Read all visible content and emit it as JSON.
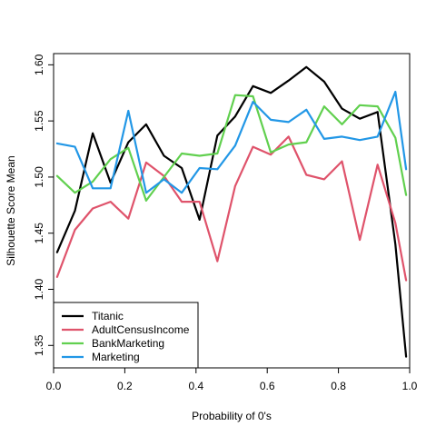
{
  "chart_data": {
    "type": "line",
    "xlabel": "Probability of 0's",
    "ylabel": "Silhouette Score Mean",
    "xlim": [
      0.0,
      1.0
    ],
    "ylim": [
      1.33,
      1.61
    ],
    "xticks": [
      0.0,
      0.2,
      0.4,
      0.6,
      0.8,
      1.0
    ],
    "xtick_labels": [
      "0.0",
      "0.2",
      "0.4",
      "0.6",
      "0.8",
      "1.0"
    ],
    "yticks": [
      1.35,
      1.4,
      1.45,
      1.5,
      1.55,
      1.6
    ],
    "ytick_labels": [
      "1.35",
      "1.40",
      "1.45",
      "1.50",
      "1.55",
      "1.60"
    ],
    "grid": false,
    "legend_position": "bottom-left",
    "x": [
      0.01,
      0.06,
      0.11,
      0.16,
      0.21,
      0.26,
      0.31,
      0.36,
      0.41,
      0.46,
      0.51,
      0.56,
      0.61,
      0.66,
      0.71,
      0.76,
      0.81,
      0.86,
      0.91,
      0.96,
      0.99
    ],
    "series": [
      {
        "name": "Titanic",
        "color": "#000000",
        "values": [
          1.433,
          1.47,
          1.539,
          1.495,
          1.531,
          1.547,
          1.519,
          1.508,
          1.462,
          1.537,
          1.554,
          1.581,
          1.575,
          1.586,
          1.598,
          1.585,
          1.561,
          1.552,
          1.558,
          1.44,
          1.34
        ]
      },
      {
        "name": "AdultCensusIncome",
        "color": "#DF536B",
        "values": [
          1.411,
          1.453,
          1.472,
          1.478,
          1.463,
          1.513,
          1.501,
          1.478,
          1.478,
          1.425,
          1.492,
          1.527,
          1.52,
          1.536,
          1.502,
          1.498,
          1.514,
          1.444,
          1.511,
          1.459,
          1.408
        ]
      },
      {
        "name": "BankMarketing",
        "color": "#61D04F",
        "values": [
          1.501,
          1.486,
          1.496,
          1.516,
          1.526,
          1.479,
          1.5,
          1.521,
          1.519,
          1.521,
          1.573,
          1.572,
          1.522,
          1.529,
          1.531,
          1.563,
          1.547,
          1.564,
          1.563,
          1.535,
          1.484
        ]
      },
      {
        "name": "Marketing",
        "color": "#2297E6",
        "values": [
          1.53,
          1.527,
          1.49,
          1.49,
          1.559,
          1.486,
          1.498,
          1.486,
          1.508,
          1.507,
          1.528,
          1.567,
          1.551,
          1.549,
          1.56,
          1.534,
          1.536,
          1.533,
          1.536,
          1.576,
          1.507
        ]
      }
    ]
  }
}
